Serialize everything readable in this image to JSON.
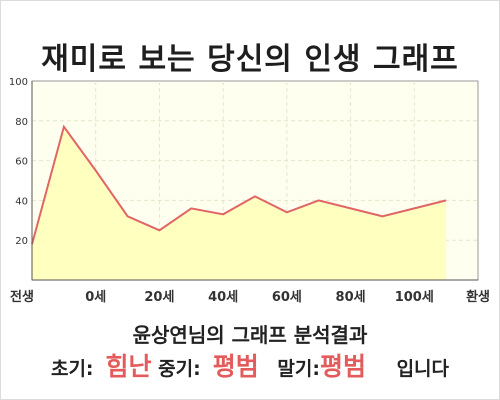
{
  "title": "재미로 보는 당신의 인생 그래프",
  "subtitle": "윤상연님의 그래프 분석결과",
  "result": {
    "early_label": "초기:",
    "early_value": "힘난",
    "mid_label": "중기:",
    "mid_value": "평범",
    "late_label": "말기:",
    "late_value": "평범",
    "ending": "입니다"
  },
  "colors": {
    "line": "#e06666",
    "fill": "#ffffbf",
    "plot_bg": "#fffff0",
    "emphasis": "#e45b5b"
  },
  "chart_data": {
    "type": "area",
    "x": [
      0,
      1,
      2,
      3,
      4,
      5,
      6,
      7,
      8,
      9,
      10,
      11,
      12,
      13
    ],
    "values": [
      18,
      77,
      55,
      32,
      25,
      36,
      33,
      42,
      34,
      40,
      36,
      32,
      36,
      40
    ],
    "x_ticks": [
      {
        "x": 0,
        "label": "전생"
      },
      {
        "x": 2,
        "label": "0세"
      },
      {
        "x": 4,
        "label": "20세"
      },
      {
        "x": 6,
        "label": "40세"
      },
      {
        "x": 8,
        "label": "60세"
      },
      {
        "x": 10,
        "label": "80세"
      },
      {
        "x": 12,
        "label": "100세"
      },
      {
        "x": 14,
        "label": "환생"
      }
    ],
    "y_ticks": [
      20,
      40,
      60,
      80,
      100
    ],
    "xlim": [
      0,
      14
    ],
    "ylim": [
      0,
      100
    ],
    "grid": true
  }
}
